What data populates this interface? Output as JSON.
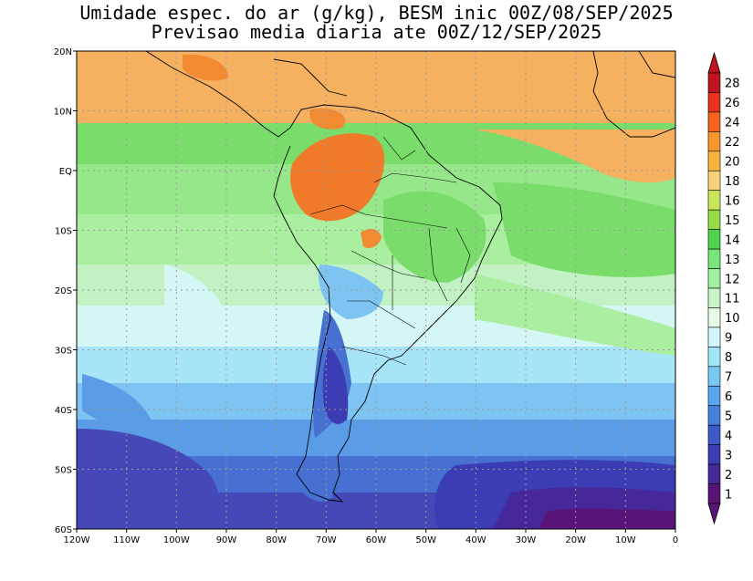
{
  "title_line1": "Umidade espec. do ar (g/kg), BESM inic 00Z/08/SEP/2025",
  "title_line2": "Previsao media diaria ate 00Z/12/SEP/2025",
  "lat_labels": [
    "20N",
    "10N",
    "EQ",
    "10S",
    "20S",
    "30S",
    "40S",
    "50S",
    "60S"
  ],
  "lon_labels": [
    "120W",
    "110W",
    "100W",
    "90W",
    "80W",
    "70W",
    "60W",
    "50W",
    "40W",
    "30W",
    "20W",
    "10W",
    "0"
  ],
  "colorbar": {
    "labels": [
      "28",
      "26",
      "24",
      "22",
      "20",
      "18",
      "16",
      "15",
      "14",
      "13",
      "12",
      "11",
      "10",
      "9",
      "8",
      "7",
      "6",
      "5",
      "4",
      "3",
      "2",
      "1"
    ],
    "colors": [
      "#c0141e",
      "#e8321e",
      "#f5641e",
      "#f7962d",
      "#f7b43c",
      "#f7d278",
      "#c8e65a",
      "#96dc46",
      "#50d250",
      "#78e678",
      "#a0f0a0",
      "#c8f5c8",
      "#e6fae6",
      "#d2f5ff",
      "#a0e6fa",
      "#78c8f5",
      "#5aa5f0",
      "#4682dc",
      "#3c5ac8",
      "#3c3cb4",
      "#46289a",
      "#5a1478"
    ]
  }
}
